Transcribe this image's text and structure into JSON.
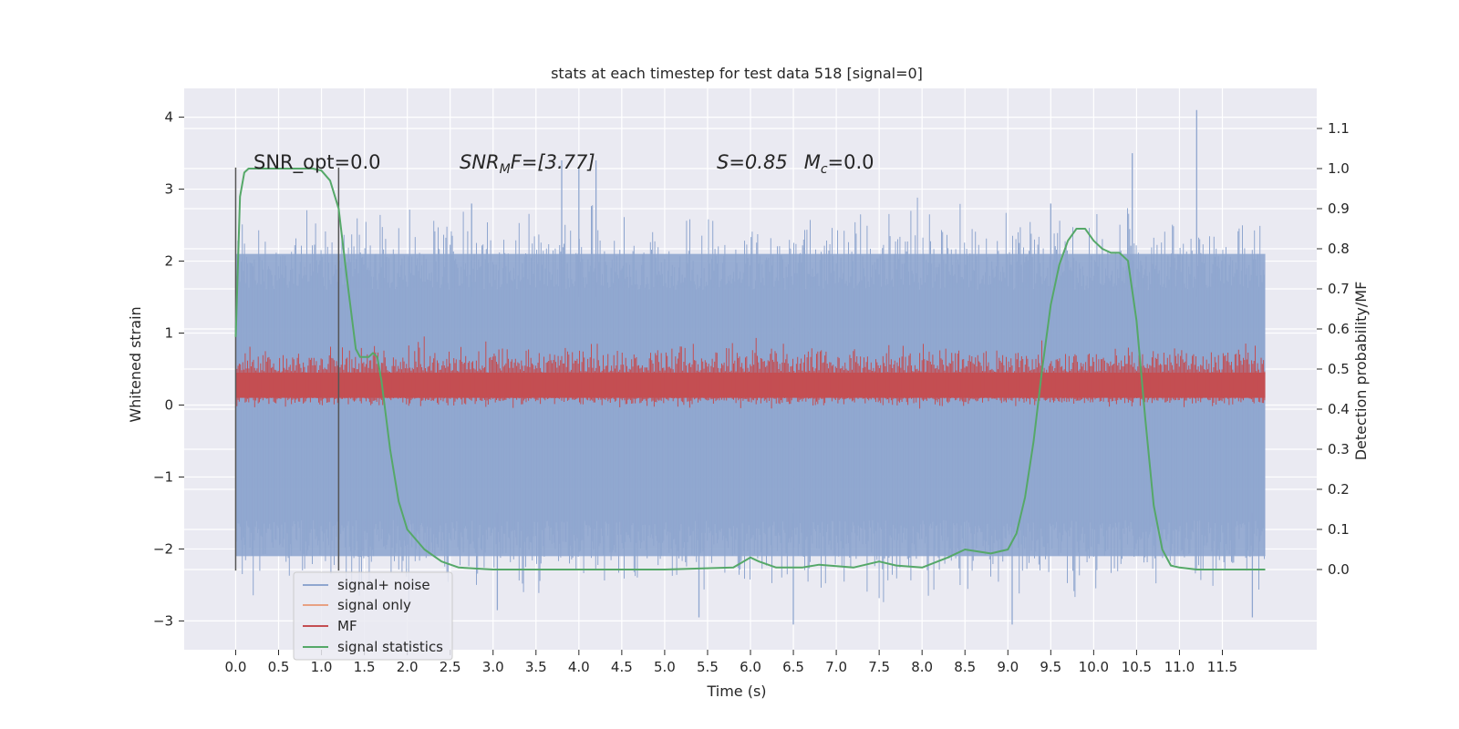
{
  "chart_data": {
    "type": "line",
    "title": "stats at each timestep for test data 518 [signal=0]",
    "xlabel": "Time (s)",
    "ylabel": "Whitened strain",
    "ylabel_right": "Detection probability/MF",
    "xlim": [
      -0.6,
      12.6
    ],
    "ylim": [
      -3.4,
      4.4
    ],
    "ylim_right": [
      -0.2,
      1.2
    ],
    "x_ticks": [
      "0.0",
      "0.5",
      "1.0",
      "1.5",
      "2.0",
      "2.5",
      "3.0",
      "3.5",
      "4.0",
      "4.5",
      "5.0",
      "5.5",
      "6.0",
      "6.5",
      "7.0",
      "7.5",
      "8.0",
      "8.5",
      "9.0",
      "9.5",
      "10.0",
      "10.5",
      "11.0",
      "11.5"
    ],
    "y_ticks": [
      "−3",
      "−2",
      "−1",
      "0",
      "1",
      "2",
      "3",
      "4"
    ],
    "y_ticks_right": [
      "0.0",
      "0.1",
      "0.2",
      "0.3",
      "0.4",
      "0.5",
      "0.6",
      "0.7",
      "0.8",
      "0.9",
      "1.0",
      "1.1"
    ],
    "grid": true,
    "legend_position": "lower-left",
    "legend": [
      "signal+ noise",
      "signal only",
      "MF",
      "signal statistics"
    ],
    "colors": {
      "signal_noise": "#8fa6cf",
      "signal_only": "#e8a183",
      "mf": "#c44e52",
      "signal_statistics": "#55a868",
      "background": "#eaeaf2",
      "vline": "#555555"
    },
    "annotations": {
      "snr_opt": "SNR_opt=0.0",
      "snr_mf_prefix": "SNR",
      "snr_mf_sub": "M",
      "snr_mf_suffix": "F=[3.77]",
      "s_text": "S=0.85",
      "mc_prefix": "M",
      "mc_sub": "c",
      "mc_suffix": "=0.0"
    },
    "vertical_lines": [
      {
        "x": 0.0,
        "y_range": [
          -2.3,
          3.3
        ]
      },
      {
        "x": 1.2,
        "y_range": [
          -2.3,
          3.3
        ]
      }
    ],
    "noise_series": {
      "name": "signal+ noise",
      "x_range": [
        0.0,
        12.0
      ],
      "dense_band": [
        -2.1,
        2.1
      ],
      "peaks_high": [
        [
          3.8,
          3.4
        ],
        [
          4.0,
          3.3
        ],
        [
          4.2,
          3.4
        ],
        [
          10.45,
          3.5
        ],
        [
          11.2,
          4.1
        ],
        [
          2.75,
          2.8
        ],
        [
          9.5,
          2.8
        ]
      ],
      "peaks_low": [
        [
          6.5,
          -3.05
        ],
        [
          9.05,
          -3.05
        ],
        [
          3.05,
          -2.85
        ],
        [
          5.4,
          -2.95
        ],
        [
          11.85,
          -2.95
        ]
      ]
    },
    "mf_series": {
      "name": "MF",
      "x_range": [
        0.0,
        12.0
      ],
      "band": [
        0.0,
        0.5
      ],
      "spike_max": 0.98
    },
    "signal_statistics": {
      "name": "signal statistics",
      "x": [
        0.0,
        0.05,
        0.1,
        0.15,
        0.2,
        0.3,
        0.5,
        0.9,
        1.0,
        1.1,
        1.2,
        1.3,
        1.4,
        1.45,
        1.5,
        1.55,
        1.6,
        1.65,
        1.7,
        1.8,
        1.9,
        2.0,
        2.2,
        2.4,
        2.6,
        3.0,
        4.0,
        5.0,
        5.8,
        6.0,
        6.1,
        6.3,
        6.6,
        6.8,
        7.2,
        7.5,
        7.7,
        8.0,
        8.3,
        8.5,
        8.8,
        9.0,
        9.1,
        9.2,
        9.3,
        9.4,
        9.5,
        9.6,
        9.7,
        9.8,
        9.9,
        10.0,
        10.1,
        10.2,
        10.3,
        10.4,
        10.5,
        10.6,
        10.7,
        10.8,
        10.9,
        11.0,
        11.2,
        11.5,
        12.0
      ],
      "y": [
        0.58,
        0.93,
        0.99,
        1.0,
        1.0,
        1.0,
        1.0,
        1.0,
        0.995,
        0.97,
        0.9,
        0.72,
        0.55,
        0.53,
        0.53,
        0.53,
        0.54,
        0.53,
        0.47,
        0.3,
        0.17,
        0.1,
        0.05,
        0.02,
        0.005,
        0.0,
        0.0,
        0.0,
        0.005,
        0.03,
        0.02,
        0.005,
        0.005,
        0.012,
        0.005,
        0.02,
        0.01,
        0.005,
        0.03,
        0.05,
        0.04,
        0.05,
        0.09,
        0.18,
        0.32,
        0.5,
        0.66,
        0.76,
        0.82,
        0.85,
        0.85,
        0.82,
        0.8,
        0.79,
        0.79,
        0.77,
        0.62,
        0.38,
        0.16,
        0.05,
        0.01,
        0.005,
        0.0,
        0.0,
        0.0
      ]
    }
  }
}
